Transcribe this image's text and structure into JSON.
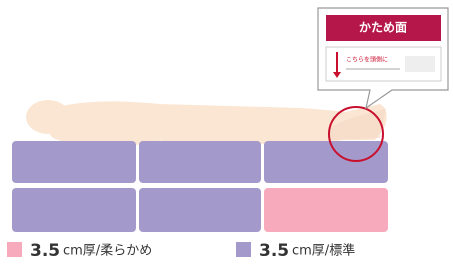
{
  "callout": {
    "title": "かため面",
    "label": "こちらを頭側に"
  },
  "legend": [
    {
      "size": "3.5",
      "text": "cm厚/柔らかめ"
    },
    {
      "size": "3.5",
      "text": "cm厚/標準"
    }
  ]
}
